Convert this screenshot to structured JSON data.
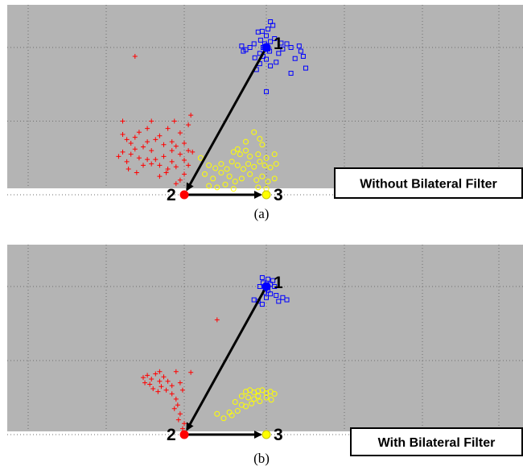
{
  "chart_data": [
    {
      "type": "scatter",
      "title": "",
      "caption": "(a)",
      "legend_box": "Without Bilateral Filter",
      "xlim": [
        0,
        6
      ],
      "ylim": [
        0,
        2.55
      ],
      "grid": true,
      "background": "#b4b4b4",
      "vertices": [
        {
          "label": "1",
          "x": 3.0,
          "y": 2.0,
          "color": "#0000ff"
        },
        {
          "label": "2",
          "x": 2.0,
          "y": 0.0,
          "color": "#ff0000"
        },
        {
          "label": "3",
          "x": 3.0,
          "y": 0.0,
          "color": "#ffff00"
        }
      ],
      "arrows": [
        [
          1,
          2
        ],
        [
          2,
          3
        ]
      ],
      "series": [
        {
          "color": "#0000ff",
          "marker": "square",
          "points": [
            [
              3.05,
              2.35
            ],
            [
              3.08,
              2.3
            ],
            [
              2.95,
              2.22
            ],
            [
              2.9,
              2.21
            ],
            [
              3.02,
              2.25
            ],
            [
              3.0,
              2.16
            ],
            [
              3.1,
              2.12
            ],
            [
              3.05,
              2.08
            ],
            [
              2.98,
              2.05
            ],
            [
              2.85,
              2.05
            ],
            [
              2.8,
              2.0
            ],
            [
              2.75,
              1.97
            ],
            [
              2.72,
              1.95
            ],
            [
              3.25,
              2.05
            ],
            [
              3.3,
              2.0
            ],
            [
              3.4,
              2.02
            ],
            [
              3.42,
              1.95
            ],
            [
              3.45,
              1.88
            ],
            [
              3.2,
              1.98
            ],
            [
              3.15,
              1.92
            ],
            [
              2.92,
              1.92
            ],
            [
              2.96,
              1.88
            ],
            [
              3.0,
              1.84
            ],
            [
              2.92,
              1.78
            ],
            [
              3.05,
              1.75
            ],
            [
              2.88,
              1.7
            ],
            [
              3.3,
              1.65
            ],
            [
              3.48,
              1.72
            ],
            [
              3.35,
              1.85
            ],
            [
              3.12,
              1.8
            ],
            [
              3.0,
              1.4
            ],
            [
              3.02,
              1.98
            ],
            [
              2.96,
              2.0
            ],
            [
              3.04,
              1.95
            ],
            [
              2.93,
              2.1
            ],
            [
              3.18,
              2.06
            ],
            [
              2.86,
              1.86
            ],
            [
              2.7,
              2.02
            ]
          ]
        },
        {
          "color": "#ff0000",
          "marker": "plus",
          "points": [
            [
              1.4,
              1.88
            ],
            [
              1.25,
              0.82
            ],
            [
              1.3,
              0.75
            ],
            [
              1.35,
              0.7
            ],
            [
              1.4,
              0.78
            ],
            [
              1.45,
              0.85
            ],
            [
              1.5,
              0.65
            ],
            [
              1.55,
              0.72
            ],
            [
              1.6,
              0.6
            ],
            [
              1.65,
              0.75
            ],
            [
              1.7,
              0.8
            ],
            [
              1.75,
              0.68
            ],
            [
              1.8,
              0.9
            ],
            [
              1.85,
              0.72
            ],
            [
              1.9,
              0.66
            ],
            [
              1.95,
              0.84
            ],
            [
              2.0,
              0.7
            ],
            [
              2.05,
              0.6
            ],
            [
              1.6,
              0.42
            ],
            [
              1.65,
              0.48
            ],
            [
              1.7,
              0.4
            ],
            [
              1.75,
              0.52
            ],
            [
              1.8,
              0.35
            ],
            [
              1.85,
              0.45
            ],
            [
              1.9,
              0.38
            ],
            [
              1.95,
              0.55
            ],
            [
              2.0,
              0.47
            ],
            [
              2.05,
              0.4
            ],
            [
              1.2,
              0.52
            ],
            [
              1.25,
              0.58
            ],
            [
              1.3,
              0.45
            ],
            [
              1.35,
              0.55
            ],
            [
              1.4,
              0.62
            ],
            [
              1.45,
              0.5
            ],
            [
              1.5,
              0.4
            ],
            [
              1.55,
              0.48
            ],
            [
              1.85,
              0.6
            ],
            [
              2.0,
              0.28
            ],
            [
              1.95,
              0.2
            ],
            [
              1.9,
              0.15
            ],
            [
              2.05,
              0.95
            ],
            [
              2.08,
              1.08
            ],
            [
              1.88,
              1.0
            ],
            [
              1.6,
              1.0
            ],
            [
              1.25,
              1.0
            ],
            [
              1.7,
              0.25
            ],
            [
              1.78,
              0.3
            ],
            [
              2.1,
              0.58
            ],
            [
              1.55,
              0.9
            ],
            [
              1.42,
              0.3
            ],
            [
              1.32,
              0.35
            ]
          ]
        },
        {
          "color": "#ffff00",
          "marker": "circle",
          "points": [
            [
              2.85,
              0.85
            ],
            [
              2.92,
              0.76
            ],
            [
              2.95,
              0.68
            ],
            [
              2.6,
              0.58
            ],
            [
              2.68,
              0.55
            ],
            [
              2.75,
              0.6
            ],
            [
              2.8,
              0.52
            ],
            [
              2.9,
              0.55
            ],
            [
              3.0,
              0.5
            ],
            [
              3.1,
              0.55
            ],
            [
              2.3,
              0.4
            ],
            [
              2.38,
              0.36
            ],
            [
              2.45,
              0.42
            ],
            [
              2.52,
              0.35
            ],
            [
              2.58,
              0.45
            ],
            [
              2.65,
              0.4
            ],
            [
              2.72,
              0.35
            ],
            [
              2.78,
              0.42
            ],
            [
              2.85,
              0.38
            ],
            [
              2.92,
              0.45
            ],
            [
              2.98,
              0.4
            ],
            [
              3.05,
              0.37
            ],
            [
              3.12,
              0.42
            ],
            [
              2.25,
              0.28
            ],
            [
              2.35,
              0.22
            ],
            [
              2.45,
              0.3
            ],
            [
              2.55,
              0.25
            ],
            [
              2.62,
              0.18
            ],
            [
              2.7,
              0.22
            ],
            [
              2.8,
              0.28
            ],
            [
              2.88,
              0.2
            ],
            [
              2.95,
              0.25
            ],
            [
              3.02,
              0.18
            ],
            [
              3.1,
              0.22
            ],
            [
              2.3,
              0.12
            ],
            [
              2.4,
              0.1
            ],
            [
              2.5,
              0.14
            ],
            [
              2.6,
              0.08
            ],
            [
              2.9,
              0.1
            ],
            [
              3.0,
              0.08
            ],
            [
              2.2,
              0.5
            ],
            [
              2.75,
              0.72
            ],
            [
              2.65,
              0.62
            ]
          ]
        }
      ]
    },
    {
      "type": "scatter",
      "title": "",
      "caption": "(b)",
      "legend_box": "With Bilateral Filter",
      "xlim": [
        0,
        6
      ],
      "ylim": [
        0,
        2.55
      ],
      "grid": true,
      "background": "#b4b4b4",
      "vertices": [
        {
          "label": "1",
          "x": 3.0,
          "y": 2.0,
          "color": "#0000ff"
        },
        {
          "label": "2",
          "x": 2.0,
          "y": 0.0,
          "color": "#ff0000"
        },
        {
          "label": "3",
          "x": 3.0,
          "y": 0.0,
          "color": "#ffff00"
        }
      ],
      "arrows": [
        [
          1,
          2
        ],
        [
          2,
          3
        ]
      ],
      "series": [
        {
          "color": "#0000ff",
          "marker": "square",
          "points": [
            [
              2.95,
              2.12
            ],
            [
              3.02,
              2.1
            ],
            [
              3.08,
              2.08
            ],
            [
              2.96,
              2.05
            ],
            [
              3.05,
              2.03
            ],
            [
              2.92,
              2.0
            ],
            [
              3.0,
              1.98
            ],
            [
              3.1,
              2.0
            ],
            [
              2.98,
              1.92
            ],
            [
              3.05,
              1.9
            ],
            [
              3.12,
              1.88
            ],
            [
              3.2,
              1.85
            ],
            [
              3.25,
              1.82
            ],
            [
              2.85,
              1.82
            ],
            [
              2.9,
              1.8
            ],
            [
              2.95,
              1.76
            ],
            [
              3.0,
              1.85
            ],
            [
              3.15,
              1.8
            ],
            [
              3.02,
              1.95
            ]
          ]
        },
        {
          "color": "#ff0000",
          "marker": "plus",
          "points": [
            [
              2.4,
              1.55
            ],
            [
              1.5,
              0.77
            ],
            [
              1.55,
              0.8
            ],
            [
              1.6,
              0.75
            ],
            [
              1.65,
              0.82
            ],
            [
              1.7,
              0.85
            ],
            [
              1.75,
              0.78
            ],
            [
              1.8,
              0.72
            ],
            [
              1.9,
              0.85
            ],
            [
              1.95,
              0.7
            ],
            [
              1.58,
              0.68
            ],
            [
              1.62,
              0.62
            ],
            [
              1.68,
              0.58
            ],
            [
              1.72,
              0.65
            ],
            [
              1.78,
              0.6
            ],
            [
              1.85,
              0.55
            ],
            [
              1.9,
              0.48
            ],
            [
              1.92,
              0.4
            ],
            [
              1.88,
              0.35
            ],
            [
              1.95,
              0.28
            ],
            [
              1.93,
              0.2
            ],
            [
              2.0,
              0.15
            ],
            [
              1.98,
              0.08
            ],
            [
              1.85,
              0.66
            ],
            [
              1.7,
              0.72
            ],
            [
              1.98,
              0.6
            ],
            [
              2.08,
              0.84
            ],
            [
              1.52,
              0.7
            ]
          ]
        },
        {
          "color": "#ffff00",
          "marker": "circle",
          "points": [
            [
              2.75,
              0.58
            ],
            [
              2.8,
              0.6
            ],
            [
              2.85,
              0.57
            ],
            [
              2.9,
              0.59
            ],
            [
              2.95,
              0.6
            ],
            [
              3.0,
              0.56
            ],
            [
              3.05,
              0.58
            ],
            [
              3.1,
              0.55
            ],
            [
              2.7,
              0.52
            ],
            [
              2.78,
              0.5
            ],
            [
              2.85,
              0.48
            ],
            [
              2.92,
              0.45
            ],
            [
              3.0,
              0.5
            ],
            [
              3.06,
              0.47
            ],
            [
              2.62,
              0.44
            ],
            [
              2.7,
              0.4
            ],
            [
              2.75,
              0.38
            ],
            [
              2.82,
              0.42
            ],
            [
              2.4,
              0.28
            ],
            [
              2.48,
              0.22
            ],
            [
              2.55,
              0.3
            ],
            [
              2.65,
              0.32
            ],
            [
              2.58,
              0.26
            ],
            [
              2.9,
              0.52
            ]
          ]
        }
      ]
    }
  ]
}
